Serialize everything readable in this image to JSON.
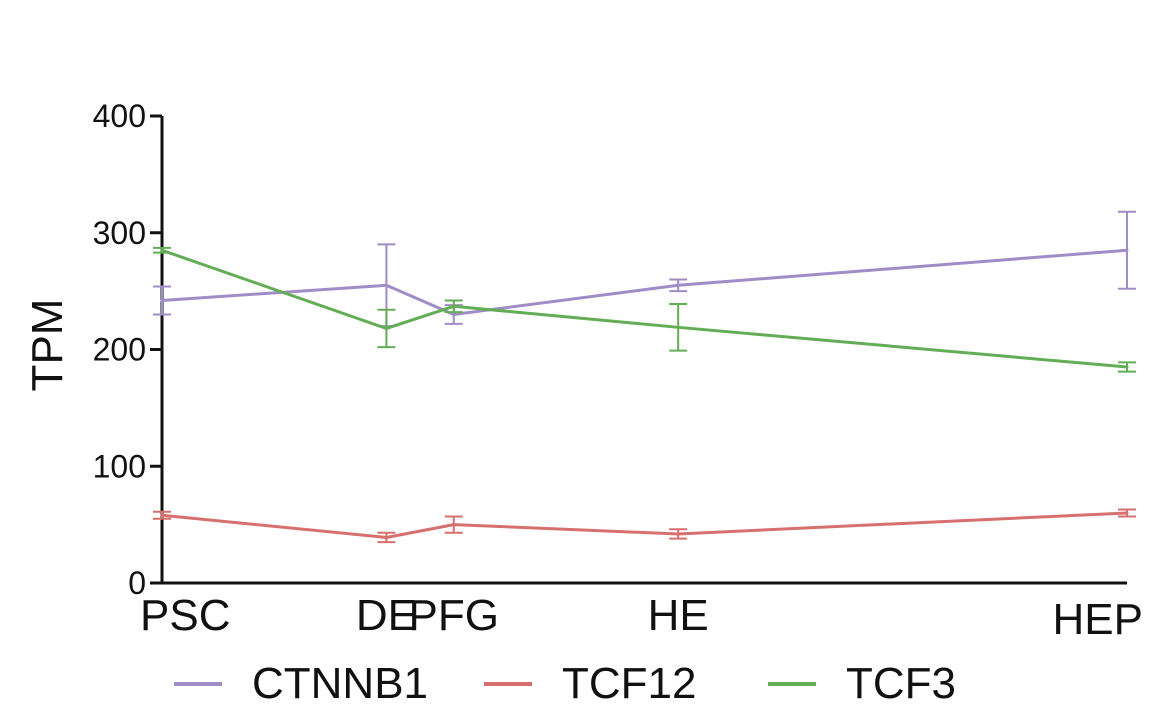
{
  "chart_data": {
    "type": "line",
    "title": "",
    "xlabel": "",
    "ylabel": "TPM",
    "categories": [
      "PSC",
      "DE",
      "PFG",
      "HE",
      "HEP"
    ],
    "x_positions": [
      0,
      1,
      1.3,
      2.3,
      4.3
    ],
    "ylim": [
      0,
      400
    ],
    "yticks": [
      0,
      100,
      200,
      300,
      400
    ],
    "grid": false,
    "legend_position": "bottom",
    "series": [
      {
        "name": "CTNNB1",
        "color": "#a08cc6",
        "values": [
          242,
          255,
          230,
          255,
          285
        ],
        "errors": [
          12,
          35,
          8,
          5,
          33
        ]
      },
      {
        "name": "TCF12",
        "color": "#d6706e",
        "values": [
          58,
          39,
          50,
          42,
          60
        ],
        "errors": [
          3,
          4,
          7,
          4,
          3
        ]
      },
      {
        "name": "TCF3",
        "color": "#63ad56",
        "values": [
          285,
          218,
          237,
          219,
          185
        ],
        "errors": [
          2,
          16,
          5,
          20,
          4
        ]
      }
    ]
  }
}
